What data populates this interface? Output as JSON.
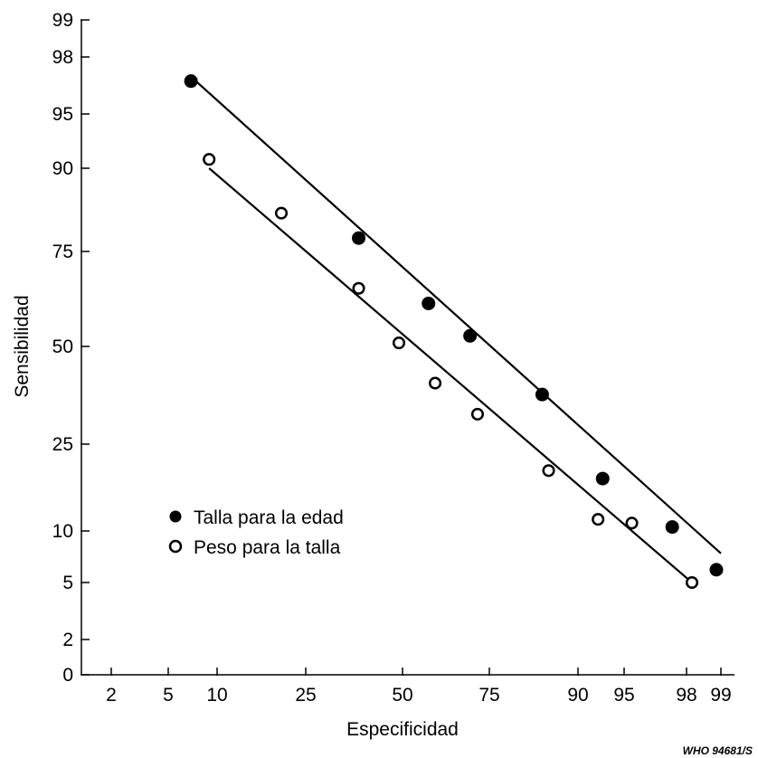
{
  "chart_data": {
    "type": "scatter",
    "scale": "probability",
    "xlabel": "Especificidad",
    "ylabel": "Sensibilidad",
    "x_ticks": [
      2,
      5,
      10,
      25,
      50,
      75,
      90,
      95,
      98,
      99
    ],
    "y_ticks": [
      0,
      2,
      5,
      10,
      25,
      50,
      75,
      90,
      95,
      98,
      99
    ],
    "grid": false,
    "legend_position": "left",
    "series": [
      {
        "name": "Talla para la edad",
        "marker": "filled-circle",
        "points": [
          [
            7,
            97
          ],
          [
            38,
            78
          ],
          [
            58,
            62
          ],
          [
            70,
            53
          ],
          [
            85,
            37
          ],
          [
            93,
            18
          ],
          [
            97.5,
            10.5
          ],
          [
            98.9,
            6
          ]
        ],
        "fit_line": [
          [
            7.5,
            97
          ],
          [
            99,
            7.5
          ]
        ]
      },
      {
        "name": "Peso para la talla",
        "marker": "open-circle",
        "points": [
          [
            9,
            91
          ],
          [
            20,
            83
          ],
          [
            38,
            66
          ],
          [
            49,
            51
          ],
          [
            60,
            40
          ],
          [
            72,
            32
          ],
          [
            86,
            19.5
          ],
          [
            92.5,
            11.5
          ],
          [
            95.5,
            11
          ],
          [
            98.2,
            5
          ]
        ],
        "fit_line": [
          [
            9,
            90
          ],
          [
            98.2,
            5
          ]
        ]
      }
    ],
    "credit": "WHO 94681/S"
  }
}
